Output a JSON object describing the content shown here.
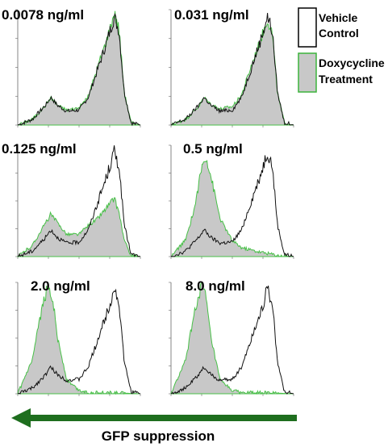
{
  "chart_data": {
    "type": "area",
    "description_labels": {
      "legend": [
        {
          "name_line1": "Vehicle",
          "name_line2": "Control",
          "fill": "#ffffff",
          "stroke": "#000000"
        },
        {
          "name_line1": "Doxycycline",
          "name_line2": "Treatment",
          "fill": "#c8c8c8",
          "stroke": "#3cb43c"
        }
      ],
      "arrow_label": "GFP suppression"
    },
    "xscale": "log",
    "xlim": [
      1,
      10000
    ],
    "ylim": [
      0,
      1
    ],
    "control_curve": [
      [
        1,
        0.0
      ],
      [
        3,
        0.05
      ],
      [
        8,
        0.17
      ],
      [
        12,
        0.24
      ],
      [
        20,
        0.17
      ],
      [
        40,
        0.12
      ],
      [
        100,
        0.13
      ],
      [
        200,
        0.24
      ],
      [
        400,
        0.48
      ],
      [
        800,
        0.72
      ],
      [
        1400,
        0.94
      ],
      [
        2000,
        0.82
      ],
      [
        3000,
        0.28
      ],
      [
        5000,
        0.02
      ],
      [
        10000,
        0.0
      ]
    ],
    "panels": [
      {
        "label": "0.0078 ng/ml",
        "treatment_curve": [
          [
            1,
            0.0
          ],
          [
            3,
            0.05
          ],
          [
            8,
            0.17
          ],
          [
            12,
            0.24
          ],
          [
            20,
            0.17
          ],
          [
            40,
            0.13
          ],
          [
            100,
            0.15
          ],
          [
            200,
            0.25
          ],
          [
            400,
            0.5
          ],
          [
            800,
            0.74
          ],
          [
            1400,
            0.97
          ],
          [
            2000,
            0.84
          ],
          [
            3000,
            0.28
          ],
          [
            5000,
            0.02
          ],
          [
            10000,
            0.0
          ]
        ]
      },
      {
        "label": "0.031 ng/ml",
        "treatment_curve": [
          [
            1,
            0.0
          ],
          [
            3,
            0.05
          ],
          [
            8,
            0.16
          ],
          [
            12,
            0.24
          ],
          [
            20,
            0.18
          ],
          [
            40,
            0.14
          ],
          [
            100,
            0.16
          ],
          [
            200,
            0.26
          ],
          [
            400,
            0.5
          ],
          [
            800,
            0.72
          ],
          [
            1400,
            0.92
          ],
          [
            2000,
            0.8
          ],
          [
            3000,
            0.27
          ],
          [
            5000,
            0.02
          ],
          [
            10000,
            0.0
          ]
        ]
      },
      {
        "label": "0.125 ng/ml",
        "treatment_curve": [
          [
            1,
            0.0
          ],
          [
            3,
            0.1
          ],
          [
            8,
            0.3
          ],
          [
            12,
            0.38
          ],
          [
            20,
            0.3
          ],
          [
            40,
            0.2
          ],
          [
            100,
            0.2
          ],
          [
            200,
            0.28
          ],
          [
            400,
            0.34
          ],
          [
            800,
            0.44
          ],
          [
            1400,
            0.52
          ],
          [
            2000,
            0.4
          ],
          [
            3000,
            0.14
          ],
          [
            5000,
            0.01
          ],
          [
            10000,
            0.0
          ]
        ]
      },
      {
        "label": "0.5 ng/ml",
        "treatment_curve": [
          [
            1,
            0.0
          ],
          [
            3,
            0.15
          ],
          [
            6,
            0.45
          ],
          [
            10,
            0.8
          ],
          [
            14,
            0.9
          ],
          [
            20,
            0.72
          ],
          [
            40,
            0.34
          ],
          [
            100,
            0.14
          ],
          [
            200,
            0.08
          ],
          [
            400,
            0.06
          ],
          [
            800,
            0.04
          ],
          [
            1400,
            0.03
          ],
          [
            3000,
            0.01
          ],
          [
            10000,
            0.0
          ]
        ]
      },
      {
        "label": "2.0 ng/ml",
        "treatment_curve": [
          [
            1,
            0.0
          ],
          [
            3,
            0.3
          ],
          [
            6,
            0.75
          ],
          [
            10,
            0.98
          ],
          [
            14,
            0.85
          ],
          [
            20,
            0.5
          ],
          [
            40,
            0.12
          ],
          [
            100,
            0.03
          ],
          [
            200,
            0.01
          ],
          [
            1000,
            0.01
          ],
          [
            10000,
            0.0
          ]
        ]
      },
      {
        "label": "8.0 ng/ml",
        "treatment_curve": [
          [
            1,
            0.0
          ],
          [
            3,
            0.3
          ],
          [
            6,
            0.75
          ],
          [
            10,
            0.98
          ],
          [
            14,
            0.85
          ],
          [
            20,
            0.5
          ],
          [
            40,
            0.12
          ],
          [
            100,
            0.03
          ],
          [
            200,
            0.01
          ],
          [
            1000,
            0.01
          ],
          [
            10000,
            0.0
          ]
        ]
      }
    ]
  }
}
